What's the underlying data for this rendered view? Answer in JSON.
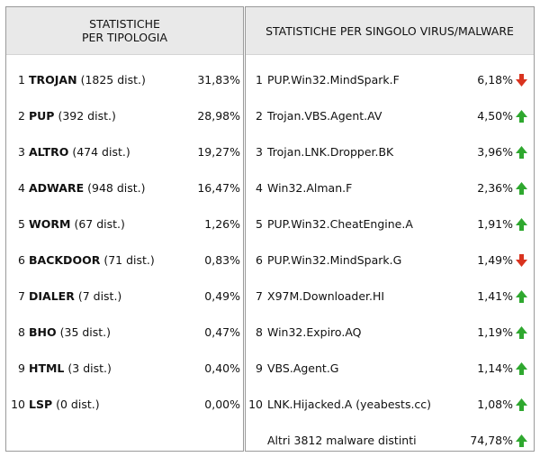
{
  "left_panel": {
    "header_line1": "STATISTICHE",
    "header_line2": "PER TIPOLOGIA",
    "rows": [
      {
        "index": "1",
        "type": "TROJAN",
        "count": "(1825 dist.)",
        "percent": "31,83%"
      },
      {
        "index": "2",
        "type": "PUP",
        "count": "(392 dist.)",
        "percent": "28,98%"
      },
      {
        "index": "3",
        "type": "ALTRO",
        "count": "(474 dist.)",
        "percent": "19,27%"
      },
      {
        "index": "4",
        "type": "ADWARE",
        "count": "(948 dist.)",
        "percent": "16,47%"
      },
      {
        "index": "5",
        "type": "WORM",
        "count": "(67 dist.)",
        "percent": "1,26%"
      },
      {
        "index": "6",
        "type": "BACKDOOR",
        "count": "(71 dist.)",
        "percent": "0,83%"
      },
      {
        "index": "7",
        "type": "DIALER",
        "count": "(7 dist.)",
        "percent": "0,49%"
      },
      {
        "index": "8",
        "type": "BHO",
        "count": "(35 dist.)",
        "percent": "0,47%"
      },
      {
        "index": "9",
        "type": "HTML",
        "count": "(3 dist.)",
        "percent": "0,40%"
      },
      {
        "index": "10",
        "type": "LSP",
        "count": "(0 dist.)",
        "percent": "0,00%"
      }
    ]
  },
  "right_panel": {
    "header": "STATISTICHE PER SINGOLO VIRUS/MALWARE",
    "rows": [
      {
        "index": "1",
        "name": "PUP.Win32.MindSpark.F",
        "percent": "6,18%",
        "trend": "down",
        "trend_icon": "red-down-arrow-icon"
      },
      {
        "index": "2",
        "name": "Trojan.VBS.Agent.AV",
        "percent": "4,50%",
        "trend": "up",
        "trend_icon": "green-up-arrow-icon"
      },
      {
        "index": "3",
        "name": "Trojan.LNK.Dropper.BK",
        "percent": "3,96%",
        "trend": "up",
        "trend_icon": "green-up-arrow-icon"
      },
      {
        "index": "4",
        "name": "Win32.Alman.F",
        "percent": "2,36%",
        "trend": "up",
        "trend_icon": "green-up-arrow-icon"
      },
      {
        "index": "5",
        "name": "PUP.Win32.CheatEngine.A",
        "percent": "1,91%",
        "trend": "up",
        "trend_icon": "green-up-arrow-icon"
      },
      {
        "index": "6",
        "name": "PUP.Win32.MindSpark.G",
        "percent": "1,49%",
        "trend": "down",
        "trend_icon": "red-down-arrow-icon"
      },
      {
        "index": "7",
        "name": "X97M.Downloader.HI",
        "percent": "1,41%",
        "trend": "up",
        "trend_icon": "green-up-arrow-icon"
      },
      {
        "index": "8",
        "name": "Win32.Expiro.AQ",
        "percent": "1,19%",
        "trend": "up",
        "trend_icon": "green-up-arrow-icon"
      },
      {
        "index": "9",
        "name": "VBS.Agent.G",
        "percent": "1,14%",
        "trend": "up",
        "trend_icon": "green-up-arrow-icon"
      },
      {
        "index": "10",
        "name": "LNK.Hijacked.A (yeabests.cc)",
        "percent": "1,08%",
        "trend": "up",
        "trend_icon": "green-up-arrow-icon"
      }
    ],
    "others": {
      "label": "Altri 3812 malware distinti",
      "percent": "74,78%",
      "trend": "up",
      "trend_icon": "green-up-arrow-icon"
    }
  },
  "colors": {
    "up": "#2fa82f",
    "down": "#d9331f",
    "header_bg": "#e9e9e9",
    "border": "#9a9a9a"
  }
}
